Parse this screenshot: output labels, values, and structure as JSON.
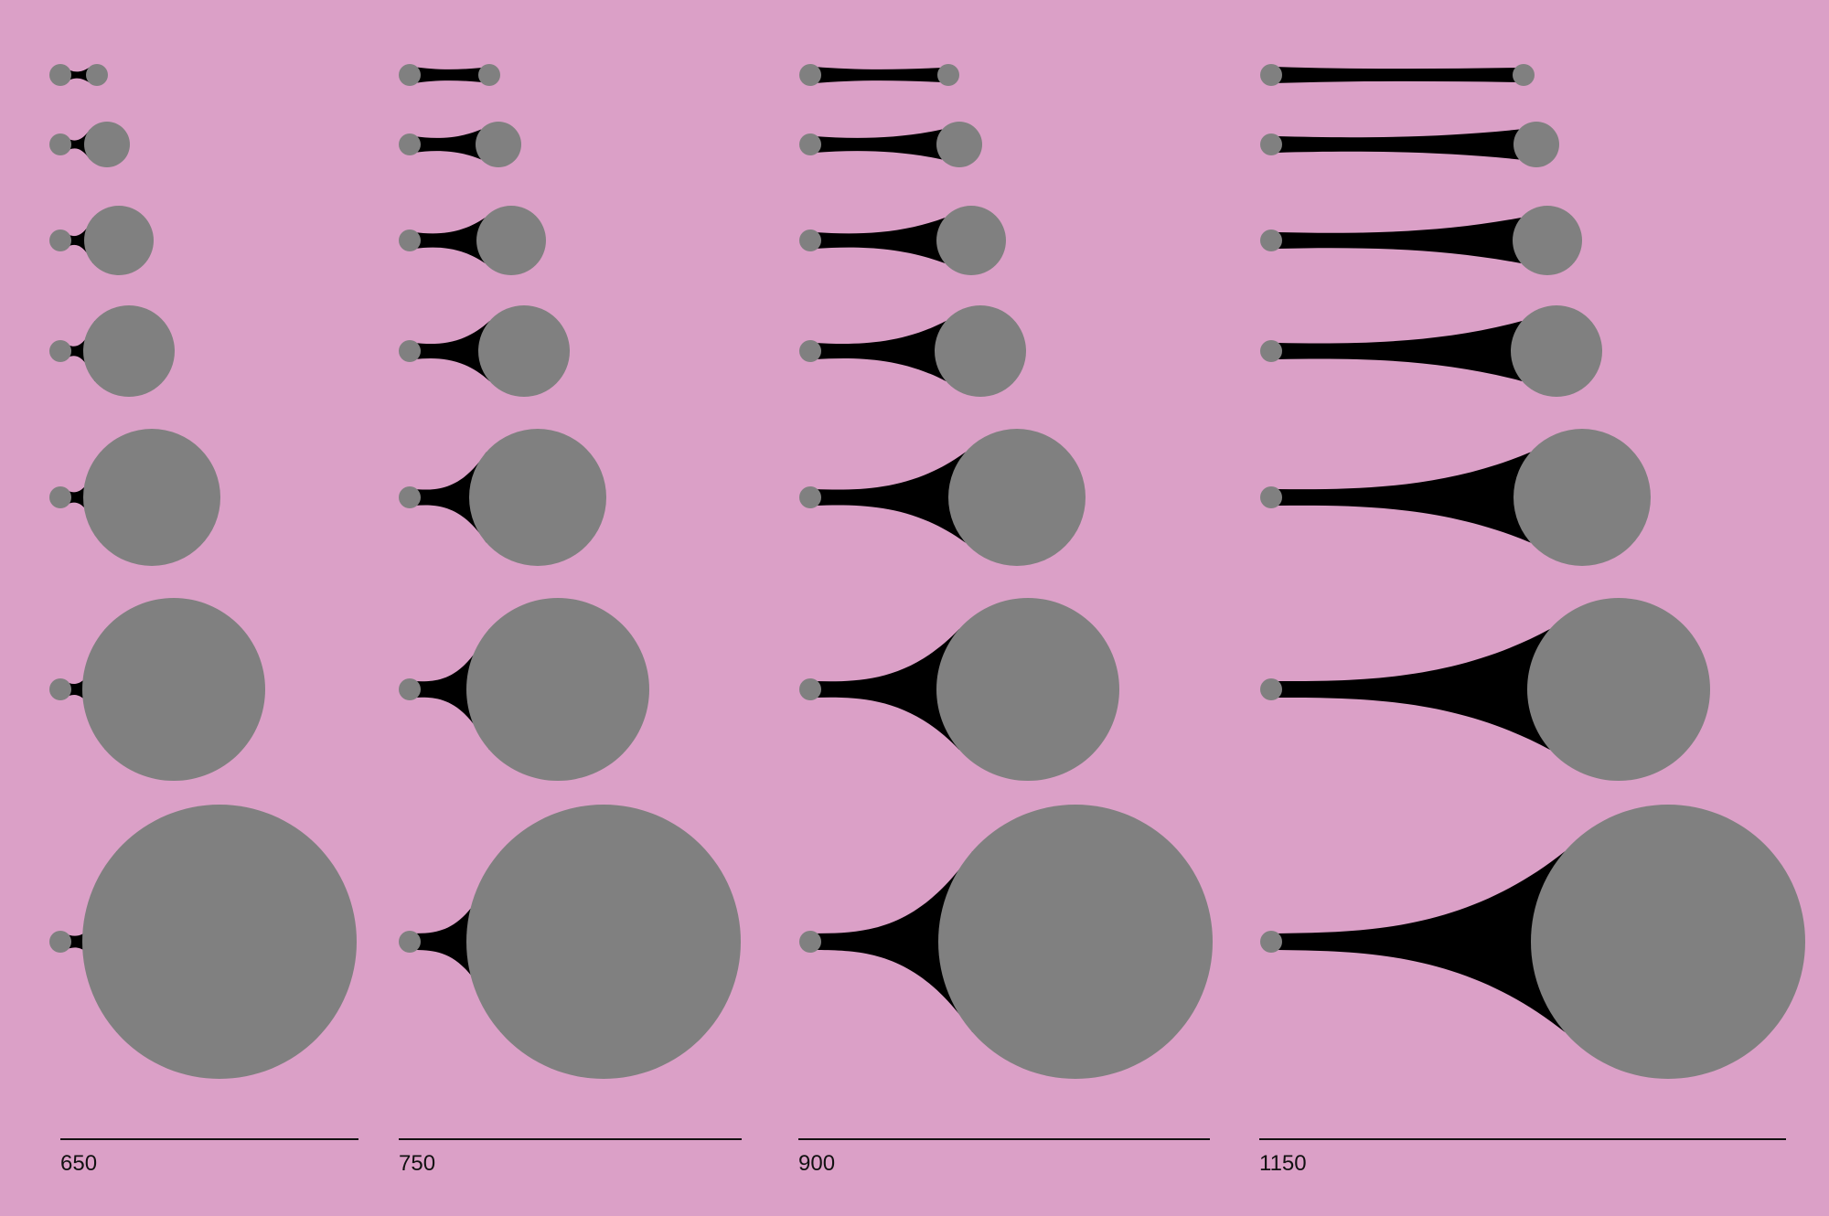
{
  "colors": {
    "background": "#dba0c7",
    "circle": "#808080",
    "bridge": "#000000",
    "rule": "#111111"
  },
  "columns": [
    {
      "label": "650"
    },
    {
      "label": "750"
    },
    {
      "label": "900"
    },
    {
      "label": "1150"
    }
  ]
}
